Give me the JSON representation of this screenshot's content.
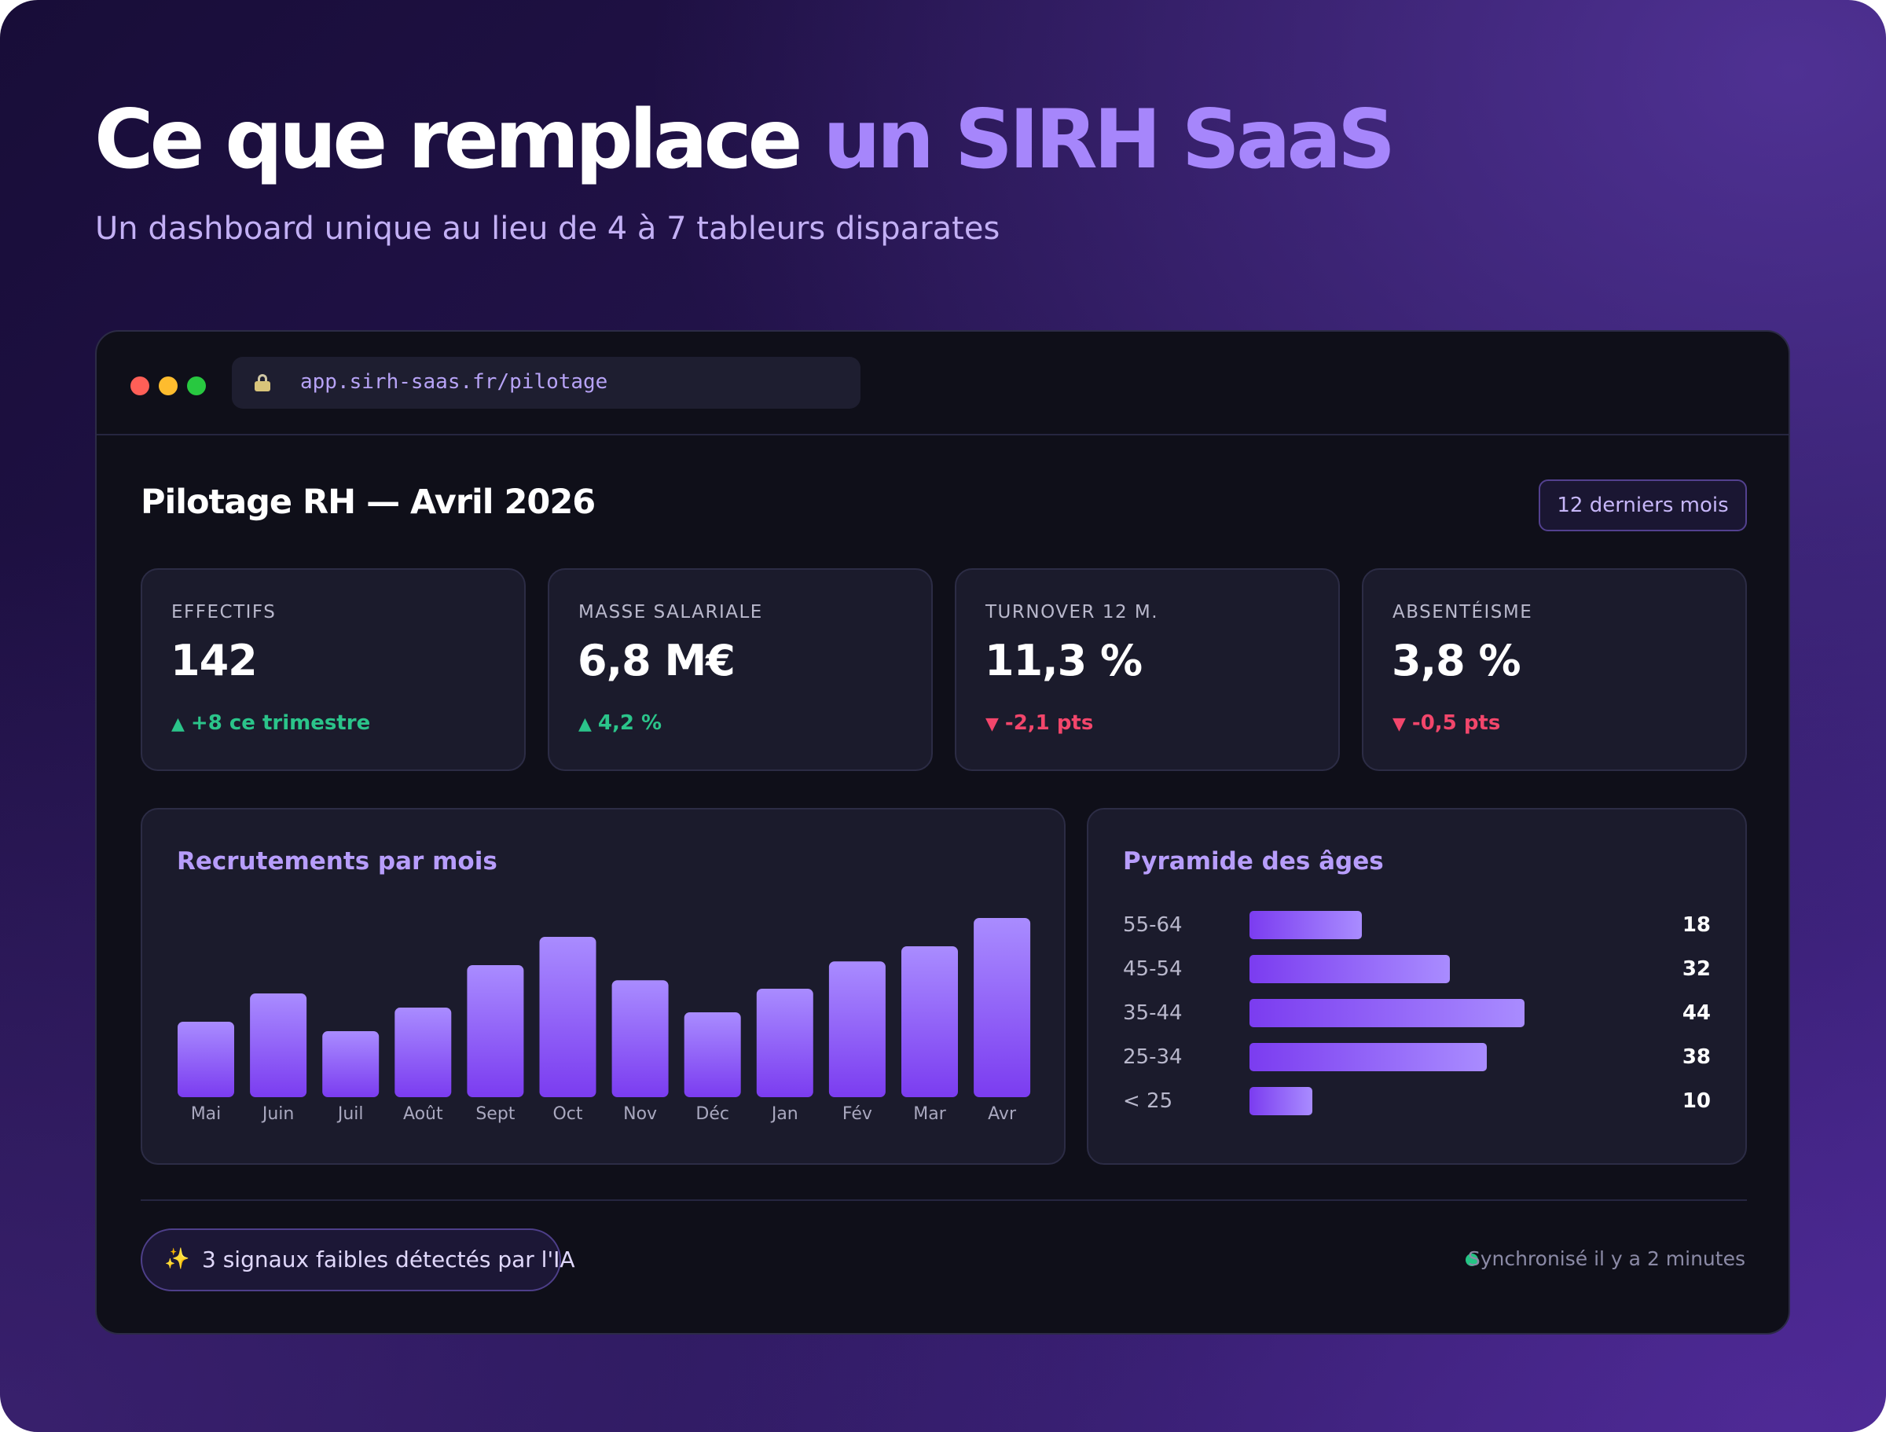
{
  "hero": {
    "headline_part1": "Ce que remplace",
    "headline_part2": "un SIRH SaaS",
    "subtitle": "Un dashboard unique au lieu de 4 à 7 tableurs disparates",
    "accent_color": "#a686fb"
  },
  "browser": {
    "url": "app.sirh-saas.fr/pilotage",
    "lock_icon": "lock-icon"
  },
  "dashboard": {
    "title": "Pilotage RH — Avril 2026",
    "period_button": "12 derniers mois"
  },
  "kpis": [
    {
      "label": "EFFECTIFS",
      "value": "142",
      "delta": "+8 ce trimestre",
      "direction": "up",
      "arrow": "▲"
    },
    {
      "label": "MASSE SALARIALE",
      "value": "6,8 M€",
      "delta": "4,2 %",
      "direction": "up",
      "arrow": "▲"
    },
    {
      "label": "TURNOVER 12 M.",
      "value": "11,3 %",
      "delta": "-2,1 pts",
      "direction": "down",
      "arrow": "▼"
    },
    {
      "label": "ABSENTÉISME",
      "value": "3,8 %",
      "delta": "-0,5 pts",
      "direction": "down",
      "arrow": "▼"
    }
  ],
  "colors": {
    "up": "#2bc48a",
    "down": "#f2466b",
    "bar_top": "#a98cff",
    "bar_bottom": "#7b3cf0"
  },
  "chart_data": [
    {
      "type": "bar",
      "title": "Recrutements par mois",
      "categories": [
        "Mai",
        "Juin",
        "Juil",
        "Août",
        "Sept",
        "Oct",
        "Nov",
        "Déc",
        "Jan",
        "Fév",
        "Mar",
        "Avr"
      ],
      "values": [
        8,
        11,
        7,
        9.5,
        14,
        17,
        12.4,
        9,
        11.5,
        14.4,
        16,
        19
      ],
      "ylim": [
        0,
        19
      ]
    },
    {
      "type": "bar",
      "orientation": "horizontal",
      "title": "Pyramide des âges",
      "categories": [
        "55-64",
        "45-54",
        "35-44",
        "25-34",
        "< 25"
      ],
      "values": [
        18,
        32,
        44,
        38,
        10
      ],
      "xlim": [
        0,
        44
      ]
    }
  ],
  "footer": {
    "ai_signal": "3 signaux faibles détectés par l'IA",
    "sparkle": "✨",
    "sync_status": "Synchronisé il y a 2 minutes"
  }
}
